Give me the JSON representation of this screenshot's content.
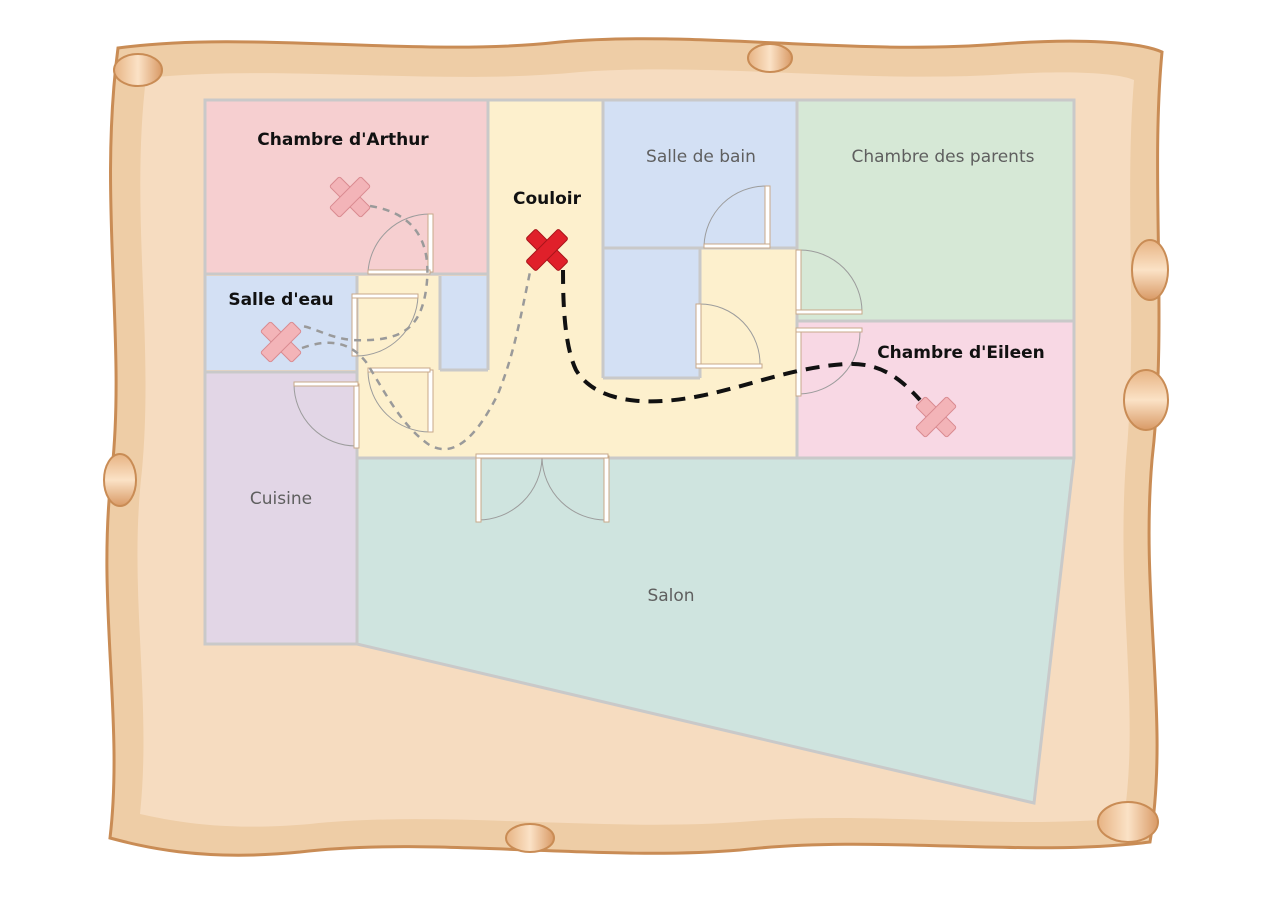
{
  "rooms": {
    "arthur": "Chambre d'Arthur",
    "salle_eau": "Salle d'eau",
    "couloir": "Couloir",
    "salle_bain": "Salle de bain",
    "parents": "Chambre des parents",
    "eileen": "Chambre d'Eileen",
    "cuisine": "Cuisine",
    "salon": "Salon"
  },
  "markers": [
    {
      "room": "Couloir",
      "style": "primary",
      "color": "#e0202a"
    },
    {
      "room": "Chambre d'Arthur",
      "style": "secondary",
      "color": "#f3b4b8"
    },
    {
      "room": "Salle d'eau",
      "style": "secondary",
      "color": "#f3b4b8"
    },
    {
      "room": "Chambre d'Eileen",
      "style": "secondary",
      "color": "#f3b4b8"
    }
  ],
  "colors": {
    "parchment": "#f6dcc0",
    "arthur": "#f6cfd0",
    "salle_eau": "#d3e0f4",
    "couloir": "#fdf0cd",
    "salle_bain": "#d3e0f4",
    "parents": "#d6e8d6",
    "eileen": "#f8d8e4",
    "cuisine": "#e2d6e6",
    "salon": "#cfe4df",
    "path_primary": "#111111",
    "path_secondary": "#9a9a9a"
  }
}
